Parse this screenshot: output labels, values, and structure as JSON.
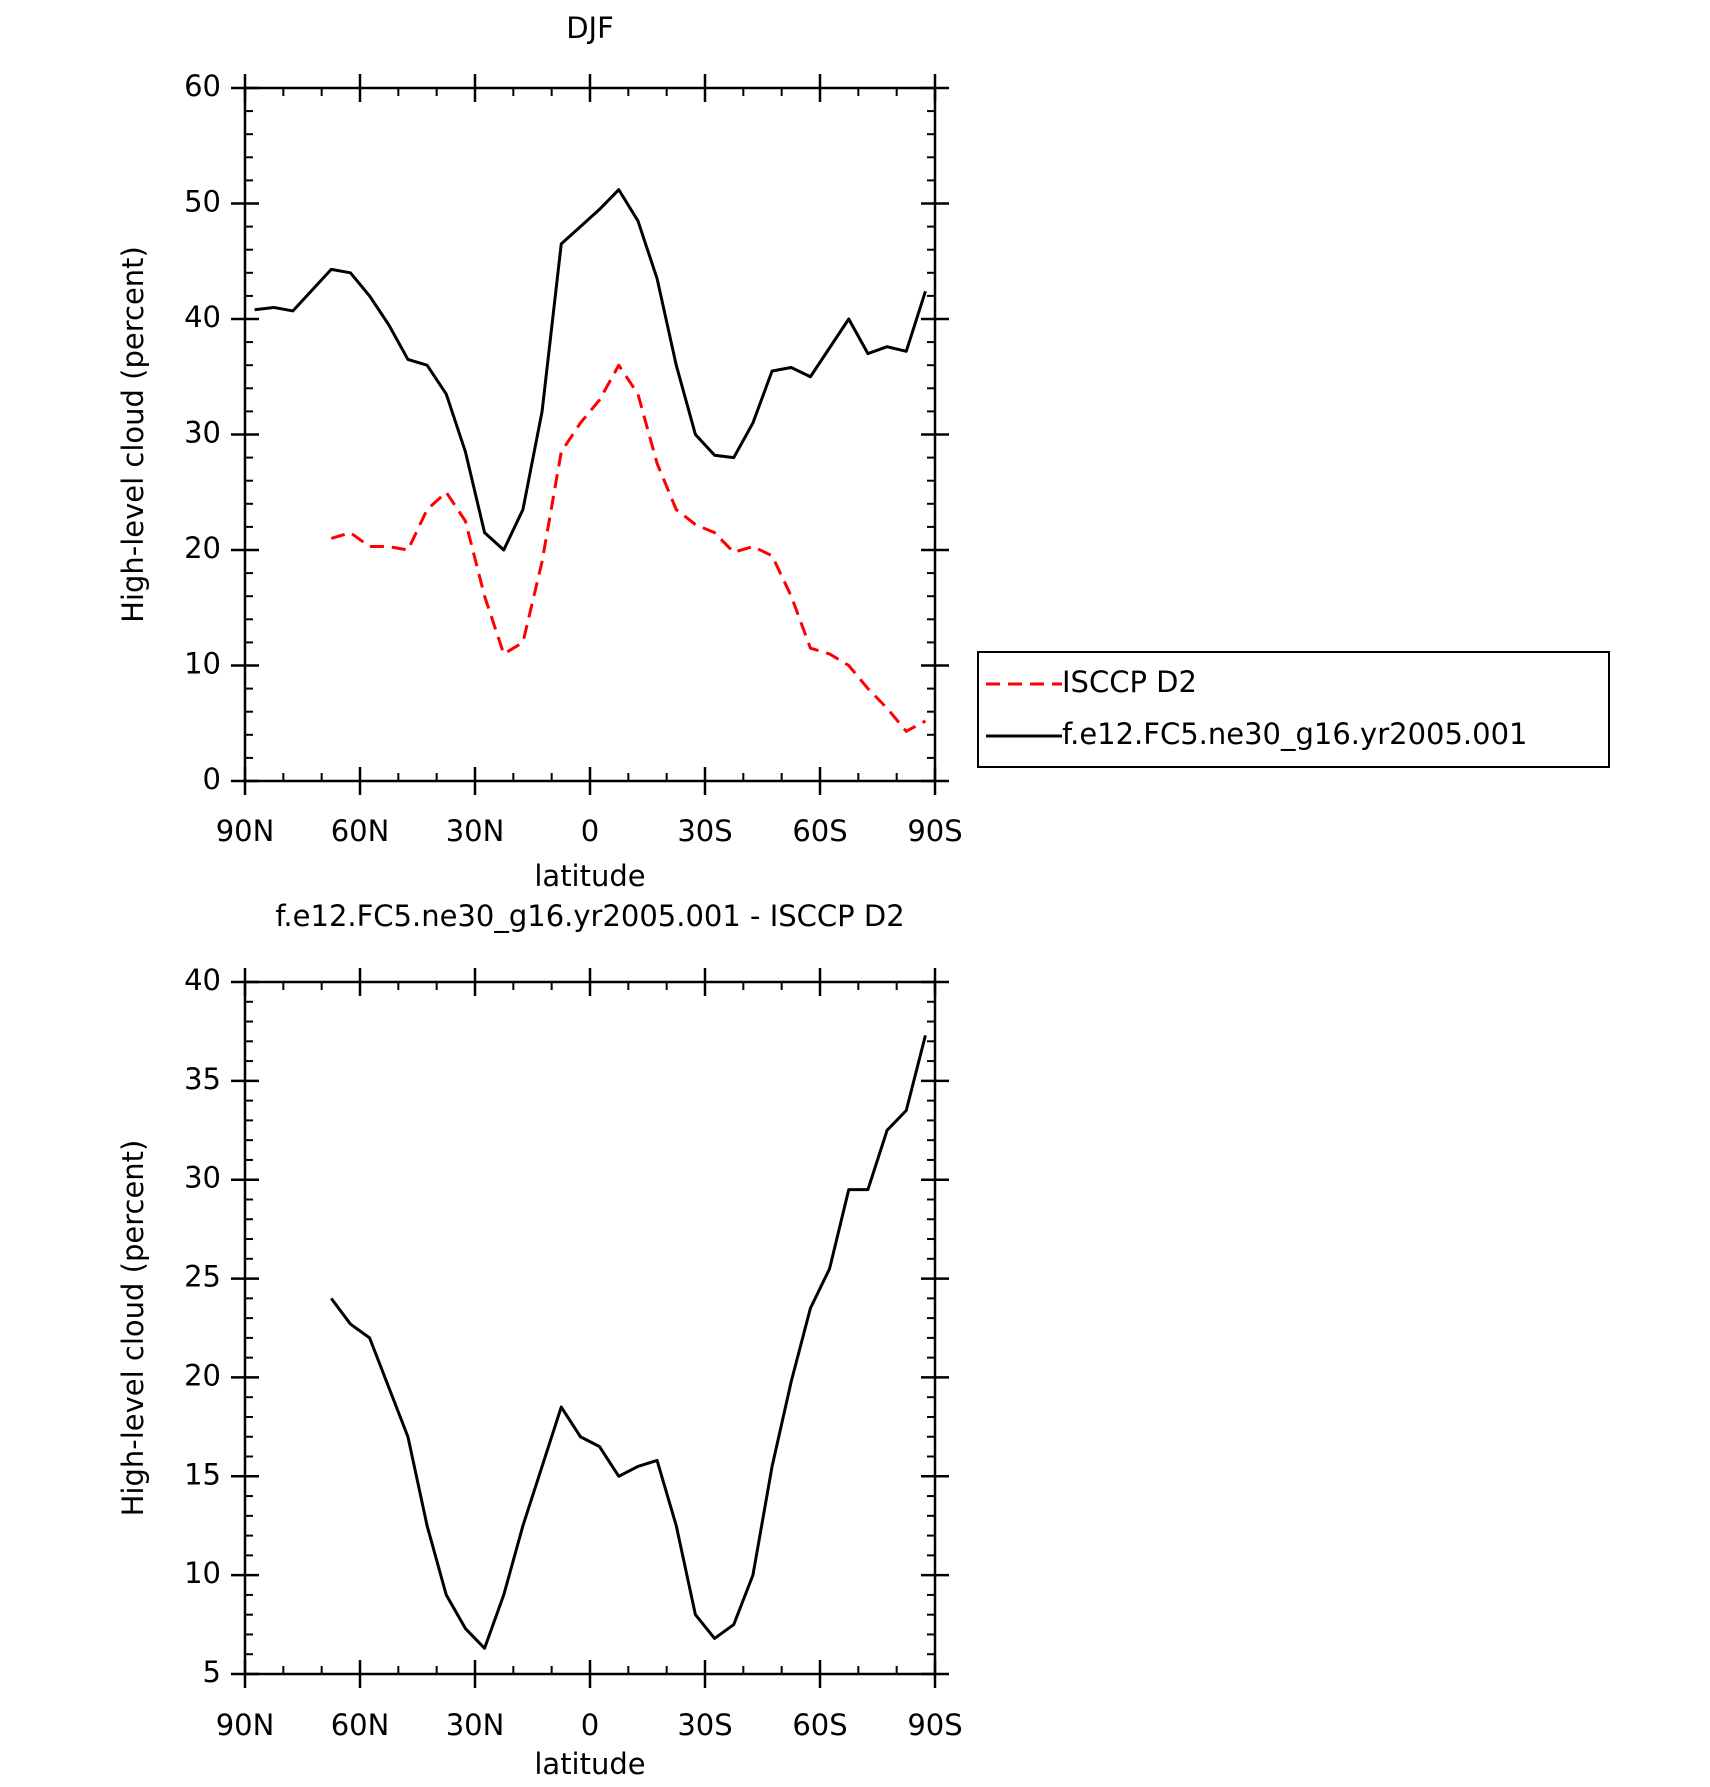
{
  "chart_data": [
    {
      "type": "line",
      "title": "DJF",
      "x_label": "latitude",
      "y_label": "High-level cloud (percent)",
      "x": [
        87.5,
        82.5,
        77.5,
        72.5,
        67.5,
        62.5,
        57.5,
        52.5,
        47.5,
        42.5,
        37.5,
        32.5,
        27.5,
        22.5,
        17.5,
        12.5,
        7.5,
        2.5,
        -2.5,
        -7.5,
        -12.5,
        -17.5,
        -22.5,
        -27.5,
        -32.5,
        -37.5,
        -42.5,
        -47.5,
        -52.5,
        -57.5,
        -62.5,
        -67.5,
        -72.5,
        -77.5,
        -82.5,
        -87.5
      ],
      "xlim": [
        90,
        -90
      ],
      "xticks": [
        {
          "value": 90,
          "label": "90N"
        },
        {
          "value": 60,
          "label": "60N"
        },
        {
          "value": 30,
          "label": "30N"
        },
        0,
        {
          "value": -30,
          "label": "30S"
        },
        {
          "value": -60,
          "label": "60S"
        },
        {
          "value": -90,
          "label": "90S"
        }
      ],
      "ylim": [
        0,
        60
      ],
      "yticks": [
        0,
        10,
        20,
        30,
        40,
        50,
        60
      ],
      "legend": "right",
      "series": [
        {
          "name": "ISCCP D2",
          "color": "#ff0000",
          "line_style": "dashed",
          "values": [
            null,
            null,
            null,
            null,
            21.0,
            21.5,
            20.3,
            20.3,
            20.0,
            23.5,
            25.0,
            22.5,
            16.0,
            11.0,
            12.0,
            19.0,
            28.5,
            31.0,
            33.0,
            36.0,
            33.5,
            27.5,
            23.5,
            22.2,
            21.5,
            19.8,
            20.3,
            19.5,
            16.0,
            11.5,
            11.0,
            10.0,
            8.0,
            6.3,
            4.3,
            5.2
          ]
        },
        {
          "name": "f.e12.FC5.ne30_g16.yr2005.001",
          "color": "#000000",
          "line_style": "solid",
          "values": [
            40.8,
            41.0,
            40.7,
            42.5,
            44.3,
            44.0,
            42.0,
            39.5,
            36.5,
            36.0,
            33.5,
            28.5,
            21.5,
            20.0,
            23.5,
            32.0,
            46.5,
            48.0,
            49.5,
            51.2,
            48.5,
            43.5,
            36.0,
            30.0,
            28.2,
            28.0,
            31.0,
            35.5,
            35.8,
            35.0,
            37.5,
            40.0,
            37.0,
            37.6,
            37.2,
            42.4
          ]
        }
      ]
    },
    {
      "type": "line",
      "title": "f.e12.FC5.ne30_g16.yr2005.001 - ISCCP D2",
      "x_label": "latitude",
      "y_label": "High-level cloud (percent)",
      "x": [
        87.5,
        82.5,
        77.5,
        72.5,
        67.5,
        62.5,
        57.5,
        52.5,
        47.5,
        42.5,
        37.5,
        32.5,
        27.5,
        22.5,
        17.5,
        12.5,
        7.5,
        2.5,
        -2.5,
        -7.5,
        -12.5,
        -17.5,
        -22.5,
        -27.5,
        -32.5,
        -37.5,
        -42.5,
        -47.5,
        -52.5,
        -57.5,
        -62.5,
        -67.5,
        -72.5,
        -77.5,
        -82.5,
        -87.5
      ],
      "xlim": [
        90,
        -90
      ],
      "xticks": [
        {
          "value": 90,
          "label": "90N"
        },
        {
          "value": 60,
          "label": "60N"
        },
        {
          "value": 30,
          "label": "30N"
        },
        0,
        {
          "value": -30,
          "label": "30S"
        },
        {
          "value": -60,
          "label": "60S"
        },
        {
          "value": -90,
          "label": "90S"
        }
      ],
      "ylim": [
        5,
        40
      ],
      "yticks": [
        5,
        10,
        15,
        20,
        25,
        30,
        35,
        40
      ],
      "series": [
        {
          "color": "#000000",
          "line_style": "solid",
          "values": [
            null,
            null,
            null,
            null,
            24.0,
            22.7,
            22.0,
            19.5,
            17.0,
            12.5,
            9.0,
            7.3,
            6.3,
            9.0,
            12.5,
            15.5,
            18.5,
            17.0,
            16.5,
            15.0,
            15.5,
            15.8,
            12.5,
            8.0,
            6.8,
            7.5,
            10.0,
            15.5,
            19.8,
            23.5,
            25.5,
            29.5,
            29.5,
            32.5,
            33.5,
            37.3
          ]
        }
      ]
    }
  ]
}
